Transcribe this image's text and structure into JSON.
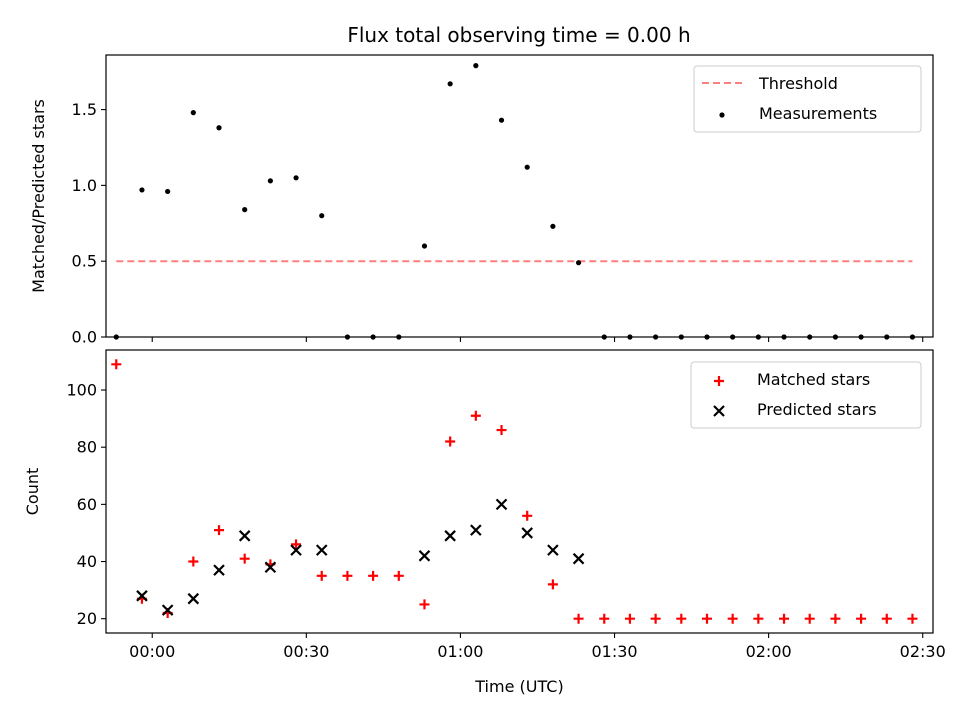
{
  "chart_data": [
    {
      "type": "scatter",
      "title": "Flux total observing time = 0.00 h",
      "xlabel": "",
      "ylabel": "Matched/Predicted stars",
      "ylim": [
        0,
        1.86
      ],
      "xlim": [
        "23:51",
        "02:32"
      ],
      "x_ticks": [
        "00:00",
        "00:30",
        "01:00",
        "01:30",
        "02:00",
        "02:30"
      ],
      "y_ticks": [
        "0.0",
        "0.5",
        "1.0",
        "1.5"
      ],
      "y_tick_values": [
        0.0,
        0.5,
        1.0,
        1.5
      ],
      "tick_labels_x_visible": false,
      "legend_position": "top-right",
      "grid": false,
      "lines": [
        {
          "name": "Threshold",
          "style": "dashed",
          "color": "#ff7f7f",
          "x": [
            "23:53",
            "02:28"
          ],
          "y": [
            0.5,
            0.5
          ]
        }
      ],
      "series": [
        {
          "name": "Measurements",
          "marker": "dot",
          "color": "#000000",
          "x": [
            "23:53",
            "23:58",
            "00:03",
            "00:08",
            "00:13",
            "00:18",
            "00:23",
            "00:28",
            "00:33",
            "00:38",
            "00:43",
            "00:48",
            "00:53",
            "00:58",
            "01:03",
            "01:08",
            "01:13",
            "01:18",
            "01:23",
            "01:28",
            "01:33",
            "01:38",
            "01:43",
            "01:48",
            "01:53",
            "01:58",
            "02:03",
            "02:08",
            "02:13",
            "02:18",
            "02:23",
            "02:28"
          ],
          "y": [
            0.0,
            0.97,
            0.96,
            1.48,
            1.38,
            0.84,
            1.03,
            1.05,
            0.8,
            0.0,
            0.0,
            0.0,
            0.6,
            1.67,
            1.79,
            1.43,
            1.12,
            0.73,
            0.49,
            0.0,
            0.0,
            0.0,
            0.0,
            0.0,
            0.0,
            0.0,
            0.0,
            0.0,
            0.0,
            0.0,
            0.0,
            0.0
          ]
        }
      ]
    },
    {
      "type": "scatter",
      "title": "",
      "xlabel": "Time (UTC)",
      "ylabel": "Count",
      "ylim": [
        15,
        114
      ],
      "xlim": [
        "23:51",
        "02:32"
      ],
      "x_ticks": [
        "00:00",
        "00:30",
        "01:00",
        "01:30",
        "02:00",
        "02:30"
      ],
      "y_ticks": [
        "20",
        "40",
        "60",
        "80",
        "100"
      ],
      "y_tick_values": [
        20,
        40,
        60,
        80,
        100
      ],
      "tick_labels_x_visible": true,
      "legend_position": "top-right",
      "grid": false,
      "series": [
        {
          "name": "Matched stars",
          "marker": "plus",
          "color": "#ff0000",
          "x": [
            "23:53",
            "23:58",
            "00:03",
            "00:08",
            "00:13",
            "00:18",
            "00:23",
            "00:28",
            "00:33",
            "00:38",
            "00:43",
            "00:48",
            "00:53",
            "00:58",
            "01:03",
            "01:08",
            "01:13",
            "01:18",
            "01:23",
            "01:28",
            "01:33",
            "01:38",
            "01:43",
            "01:48",
            "01:53",
            "01:58",
            "02:03",
            "02:08",
            "02:13",
            "02:18",
            "02:23",
            "02:28"
          ],
          "y": [
            109,
            27,
            22,
            40,
            51,
            41,
            39,
            46,
            35,
            35,
            35,
            35,
            25,
            82,
            91,
            86,
            56,
            32,
            20,
            20,
            20,
            20,
            20,
            20,
            20,
            20,
            20,
            20,
            20,
            20,
            20,
            20
          ]
        },
        {
          "name": "Predicted stars",
          "marker": "x",
          "color": "#000000",
          "x": [
            "23:58",
            "00:03",
            "00:08",
            "00:13",
            "00:18",
            "00:23",
            "00:28",
            "00:33",
            "00:53",
            "00:58",
            "01:03",
            "01:08",
            "01:13",
            "01:18",
            "01:23"
          ],
          "y": [
            28,
            23,
            27,
            37,
            49,
            38,
            44,
            44,
            42,
            49,
            51,
            60,
            50,
            44,
            41
          ]
        }
      ]
    }
  ]
}
